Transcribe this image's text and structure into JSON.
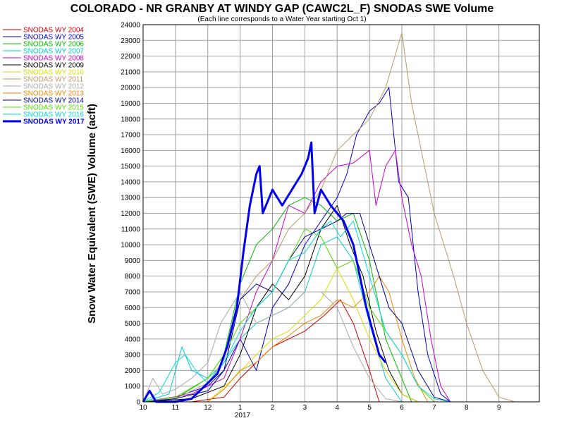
{
  "chart_data": {
    "type": "line",
    "title": "COLORADO - NR GRANBY AT WINDY GAP (CAWC2L_F) SNODAS SWE Volume",
    "subtitle": "(Each line corresponds to a Water Year starting Oct 1)",
    "ylabel": "Snow Water Equivalent (SWE) Volume (acft)",
    "xlabel": "",
    "x_tick_labels": [
      "10",
      "11",
      "12",
      "1",
      "2",
      "3",
      "4",
      "5",
      "6",
      "7",
      "8",
      "9"
    ],
    "x_year_label": "2017",
    "x_range": [
      0,
      12.25
    ],
    "ylim": [
      0,
      24000
    ],
    "y_ticks": [
      0,
      1000,
      2000,
      3000,
      4000,
      5000,
      6000,
      7000,
      8000,
      9000,
      10000,
      11000,
      12000,
      13000,
      14000,
      15000,
      16000,
      17000,
      18000,
      19000,
      20000,
      21000,
      22000,
      23000,
      24000
    ],
    "grid": true,
    "legend_position": "left",
    "series": [
      {
        "name": "SNODAS WY 2004",
        "color": "#cc0000",
        "width": 1,
        "points": [
          [
            0,
            0
          ],
          [
            1.5,
            0
          ],
          [
            2.5,
            300
          ],
          [
            3,
            1500
          ],
          [
            4,
            3500
          ],
          [
            5,
            4500
          ],
          [
            5.6,
            5500
          ],
          [
            6.1,
            6500
          ],
          [
            6.5,
            5000
          ],
          [
            7,
            2000
          ],
          [
            7.3,
            0
          ]
        ]
      },
      {
        "name": "SNODAS WY 2005",
        "color": "#0000cc",
        "width": 1,
        "points": [
          [
            0,
            0
          ],
          [
            1,
            300
          ],
          [
            2,
            1000
          ],
          [
            2.5,
            2000
          ],
          [
            3,
            4000
          ],
          [
            3.5,
            2000
          ],
          [
            4,
            6000
          ],
          [
            4.5,
            7500
          ],
          [
            5,
            10000
          ],
          [
            5.5,
            11500
          ],
          [
            6,
            13000
          ],
          [
            6.3,
            14500
          ],
          [
            6.6,
            17000
          ],
          [
            7,
            18500
          ],
          [
            7.3,
            19000
          ],
          [
            7.6,
            20000
          ],
          [
            7.9,
            14000
          ],
          [
            8.2,
            13000
          ],
          [
            8.5,
            7000
          ],
          [
            8.8,
            3000
          ],
          [
            9.2,
            500
          ],
          [
            9.5,
            0
          ]
        ]
      },
      {
        "name": "SNODAS WY 2006",
        "color": "#00bb00",
        "width": 1,
        "points": [
          [
            0,
            0
          ],
          [
            1,
            200
          ],
          [
            2,
            1500
          ],
          [
            2.5,
            3000
          ],
          [
            3,
            7500
          ],
          [
            3.5,
            10000
          ],
          [
            4,
            11000
          ],
          [
            4.5,
            12500
          ],
          [
            5,
            13000
          ],
          [
            5.5,
            12500
          ],
          [
            6,
            11500
          ],
          [
            6.5,
            12000
          ],
          [
            7,
            9000
          ],
          [
            7.5,
            4000
          ],
          [
            8,
            1500
          ],
          [
            8.3,
            0
          ]
        ]
      },
      {
        "name": "SNODAS WY 2007",
        "color": "#00cccc",
        "width": 1,
        "points": [
          [
            0,
            0
          ],
          [
            0.8,
            500
          ],
          [
            1.2,
            3500
          ],
          [
            1.5,
            2000
          ],
          [
            2,
            1500
          ],
          [
            2.5,
            2500
          ],
          [
            3,
            4000
          ],
          [
            3.5,
            5000
          ],
          [
            4,
            5500
          ],
          [
            4.5,
            6000
          ],
          [
            5,
            7000
          ],
          [
            5.5,
            10000
          ],
          [
            6,
            10500
          ],
          [
            6.5,
            9000
          ],
          [
            7,
            5000
          ],
          [
            7.5,
            1500
          ],
          [
            8,
            0
          ]
        ]
      },
      {
        "name": "SNODAS WY 2008",
        "color": "#cc00cc",
        "width": 1,
        "points": [
          [
            0,
            0
          ],
          [
            1.5,
            500
          ],
          [
            2.5,
            1500
          ],
          [
            3,
            4000
          ],
          [
            3.5,
            7000
          ],
          [
            4,
            9000
          ],
          [
            4.5,
            12500
          ],
          [
            5,
            12000
          ],
          [
            5.5,
            14000
          ],
          [
            6,
            15000
          ],
          [
            6.5,
            15200
          ],
          [
            7,
            16000
          ],
          [
            7.2,
            12500
          ],
          [
            7.5,
            15000
          ],
          [
            7.8,
            16000
          ],
          [
            8,
            13000
          ],
          [
            8.3,
            10000
          ],
          [
            8.6,
            8000
          ],
          [
            8.9,
            4000
          ],
          [
            9.2,
            1000
          ],
          [
            9.5,
            0
          ]
        ]
      },
      {
        "name": "SNODAS WY 2009",
        "color": "#000000",
        "width": 1,
        "points": [
          [
            0,
            0
          ],
          [
            1.5,
            200
          ],
          [
            2.5,
            1000
          ],
          [
            3,
            3000
          ],
          [
            3.5,
            6000
          ],
          [
            4,
            7500
          ],
          [
            4.5,
            6500
          ],
          [
            5,
            8000
          ],
          [
            5.5,
            11000
          ],
          [
            6,
            12500
          ],
          [
            6.4,
            10000
          ],
          [
            6.8,
            8000
          ],
          [
            7.2,
            4500
          ],
          [
            7.6,
            2000
          ],
          [
            8,
            500
          ],
          [
            8.5,
            0
          ]
        ]
      },
      {
        "name": "SNODAS WY 2010",
        "color": "#dddd00",
        "width": 1,
        "points": [
          [
            0,
            0
          ],
          [
            2,
            0
          ],
          [
            2.8,
            1500
          ],
          [
            3.5,
            3000
          ],
          [
            4,
            4000
          ],
          [
            4.5,
            4500
          ],
          [
            5,
            5500
          ],
          [
            5.5,
            6500
          ],
          [
            6,
            8500
          ],
          [
            6.5,
            6500
          ],
          [
            7,
            4000
          ],
          [
            7.5,
            2000
          ],
          [
            8,
            500
          ],
          [
            8.5,
            0
          ]
        ]
      },
      {
        "name": "SNODAS WY 2011",
        "color": "#bb9966",
        "width": 1,
        "points": [
          [
            0,
            0
          ],
          [
            1,
            200
          ],
          [
            2,
            1200
          ],
          [
            2.6,
            3000
          ],
          [
            3,
            6500
          ],
          [
            3.5,
            8000
          ],
          [
            4,
            9000
          ],
          [
            4.5,
            11000
          ],
          [
            5,
            12000
          ],
          [
            5.5,
            13500
          ],
          [
            6,
            16000
          ],
          [
            6.5,
            17000
          ],
          [
            7,
            18000
          ],
          [
            7.5,
            20000
          ],
          [
            8,
            23500
          ],
          [
            8.3,
            19000
          ],
          [
            8.6,
            16000
          ],
          [
            9,
            12000
          ],
          [
            9.3,
            10000
          ],
          [
            9.6,
            8000
          ],
          [
            10,
            5000
          ],
          [
            10.5,
            2000
          ],
          [
            11,
            300
          ],
          [
            11.5,
            0
          ]
        ]
      },
      {
        "name": "SNODAS WY 2012",
        "color": "#aaaaaa",
        "width": 1,
        "points": [
          [
            0,
            0
          ],
          [
            0.3,
            1500
          ],
          [
            0.6,
            500
          ],
          [
            1,
            800
          ],
          [
            1.5,
            1500
          ],
          [
            2,
            2500
          ],
          [
            2.4,
            5000
          ],
          [
            2.7,
            6000
          ],
          [
            3,
            7000
          ],
          [
            3.5,
            5000
          ],
          [
            4,
            5500
          ],
          [
            4.5,
            6000
          ],
          [
            5,
            7000
          ],
          [
            5.5,
            7000
          ],
          [
            6,
            6000
          ],
          [
            6.5,
            3500
          ],
          [
            7,
            1500
          ],
          [
            7.5,
            200
          ],
          [
            8,
            0
          ]
        ]
      },
      {
        "name": "SNODAS WY 2013",
        "color": "#ee8800",
        "width": 1,
        "points": [
          [
            0,
            0
          ],
          [
            2,
            0
          ],
          [
            2.5,
            800
          ],
          [
            3,
            2000
          ],
          [
            3.5,
            2500
          ],
          [
            4,
            3500
          ],
          [
            4.5,
            4200
          ],
          [
            5,
            5000
          ],
          [
            5.5,
            5500
          ],
          [
            6,
            6500
          ],
          [
            6.5,
            6000
          ],
          [
            7,
            7000
          ],
          [
            7.3,
            8000
          ],
          [
            7.6,
            7000
          ],
          [
            8,
            4000
          ],
          [
            8.4,
            1500
          ],
          [
            8.8,
            0
          ]
        ]
      },
      {
        "name": "SNODAS WY 2014",
        "color": "#000088",
        "width": 1,
        "points": [
          [
            0,
            0
          ],
          [
            1,
            200
          ],
          [
            2,
            700
          ],
          [
            2.5,
            2000
          ],
          [
            3,
            6500
          ],
          [
            3.5,
            7500
          ],
          [
            4,
            7000
          ],
          [
            4.5,
            9000
          ],
          [
            5,
            10500
          ],
          [
            5.5,
            11000
          ],
          [
            6,
            11500
          ],
          [
            6.3,
            12000
          ],
          [
            6.7,
            12000
          ],
          [
            7,
            10000
          ],
          [
            7.3,
            8000
          ],
          [
            7.6,
            6000
          ],
          [
            8,
            5000
          ],
          [
            8.5,
            2000
          ],
          [
            9,
            300
          ],
          [
            9.5,
            0
          ]
        ]
      },
      {
        "name": "SNODAS WY 2015",
        "color": "#55dd00",
        "width": 1,
        "points": [
          [
            0,
            0
          ],
          [
            1,
            300
          ],
          [
            2,
            1500
          ],
          [
            2.5,
            3000
          ],
          [
            3,
            5000
          ],
          [
            3.5,
            6000
          ],
          [
            4,
            7000
          ],
          [
            4.5,
            9000
          ],
          [
            5,
            11000
          ],
          [
            5.5,
            10500
          ],
          [
            6,
            8500
          ],
          [
            6.5,
            9000
          ],
          [
            7,
            6000
          ],
          [
            7.5,
            4500
          ],
          [
            8,
            3000
          ],
          [
            8.5,
            1000
          ],
          [
            9,
            0
          ]
        ]
      },
      {
        "name": "SNODAS WY 2016",
        "color": "#00dddd",
        "width": 1,
        "points": [
          [
            0,
            0
          ],
          [
            0.5,
            600
          ],
          [
            1,
            2500
          ],
          [
            1.3,
            3000
          ],
          [
            1.7,
            1800
          ],
          [
            2,
            1200
          ],
          [
            2.5,
            2500
          ],
          [
            3,
            4500
          ],
          [
            3.5,
            6000
          ],
          [
            4,
            7000
          ],
          [
            4.5,
            9000
          ],
          [
            5,
            9500
          ],
          [
            5.5,
            11000
          ],
          [
            5.8,
            11500
          ],
          [
            6.1,
            10500
          ],
          [
            6.5,
            11500
          ],
          [
            7,
            8000
          ],
          [
            7.5,
            4500
          ],
          [
            8,
            3000
          ],
          [
            8.5,
            1000
          ],
          [
            9,
            200
          ],
          [
            9.5,
            0
          ]
        ]
      },
      {
        "name": "SNODAS WY 2017",
        "color": "#0000ee",
        "width": 3,
        "points": [
          [
            0,
            0
          ],
          [
            0.2,
            700
          ],
          [
            0.4,
            0
          ],
          [
            1,
            0
          ],
          [
            1.5,
            200
          ],
          [
            2,
            1200
          ],
          [
            2.3,
            1800
          ],
          [
            2.6,
            3500
          ],
          [
            2.9,
            6000
          ],
          [
            3.1,
            9500
          ],
          [
            3.3,
            12500
          ],
          [
            3.5,
            14500
          ],
          [
            3.6,
            15000
          ],
          [
            3.7,
            12000
          ],
          [
            4,
            13500
          ],
          [
            4.3,
            12500
          ],
          [
            4.6,
            13500
          ],
          [
            4.9,
            14500
          ],
          [
            5.1,
            15500
          ],
          [
            5.2,
            16500
          ],
          [
            5.3,
            12000
          ],
          [
            5.5,
            13500
          ],
          [
            5.8,
            12500
          ],
          [
            6,
            12000
          ],
          [
            6.2,
            11500
          ],
          [
            6.5,
            10000
          ],
          [
            6.7,
            8000
          ],
          [
            6.9,
            6000
          ],
          [
            7.1,
            4500
          ],
          [
            7.3,
            3000
          ],
          [
            7.5,
            2500
          ]
        ]
      }
    ]
  }
}
